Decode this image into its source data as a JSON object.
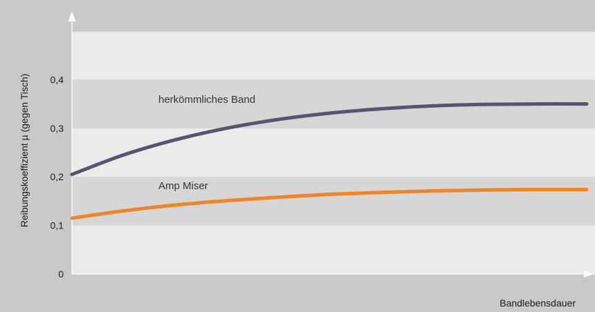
{
  "chart_data": {
    "type": "line",
    "title": "",
    "xlabel": "Bandlebensdauer",
    "ylabel": "Reibungskoeffizient µ (gegen Tisch)",
    "ylim": [
      0,
      0.45
    ],
    "y_ticks": [
      {
        "value": 0,
        "label": "0"
      },
      {
        "value": 0.1,
        "label": "0,1"
      },
      {
        "value": 0.2,
        "label": "0,2"
      },
      {
        "value": 0.3,
        "label": "0,3"
      },
      {
        "value": 0.4,
        "label": "0,4"
      }
    ],
    "x_ticks_shown": false,
    "xlim": [
      0,
      1
    ],
    "grid": "alternating horizontal bands",
    "legend": "inline labels above curves",
    "colors": {
      "background": "#c9c9c9",
      "band_light": "#ebebeb",
      "band_dark": "#d6d6d6",
      "axis": "#ffffff"
    },
    "series": [
      {
        "name": "herkömmliches Band",
        "color": "#575470",
        "x": [
          0,
          0.1,
          0.2,
          0.3,
          0.4,
          0.5,
          0.6,
          0.7,
          0.8,
          0.9,
          1.0
        ],
        "y": [
          0.205,
          0.245,
          0.276,
          0.3,
          0.318,
          0.331,
          0.34,
          0.346,
          0.349,
          0.35,
          0.35
        ]
      },
      {
        "name": "Amp Miser",
        "color": "#f08427",
        "x": [
          0,
          0.1,
          0.2,
          0.3,
          0.4,
          0.5,
          0.6,
          0.7,
          0.8,
          0.9,
          1.0
        ],
        "y": [
          0.115,
          0.13,
          0.142,
          0.151,
          0.158,
          0.164,
          0.168,
          0.171,
          0.173,
          0.174,
          0.174
        ]
      }
    ]
  }
}
